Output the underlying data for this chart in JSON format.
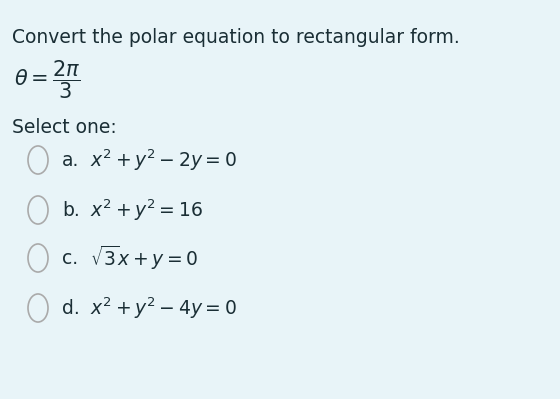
{
  "background_color": "#e8f4f8",
  "title": "Convert the polar equation to rectangular form.",
  "title_fontsize": 13.5,
  "equation": "$\\theta = \\dfrac{2\\pi}{3}$",
  "eq_fontsize": 15,
  "select_text": "Select one:",
  "select_fontsize": 13.5,
  "options": [
    {
      "label": "a.",
      "formula": "$x^2 + y^2 - 2y = 0$"
    },
    {
      "label": "b.",
      "formula": "$x^2 + y^2 = 16$"
    },
    {
      "label": "c.",
      "formula": "$\\sqrt{3}x + y = 0$"
    },
    {
      "label": "d.",
      "formula": "$x^2 + y^2 - 4y = 0$"
    }
  ],
  "circle_color": "#aaaaaa",
  "circle_linewidth": 1.2,
  "font_color": "#1a2e35",
  "option_fontsize": 13.5,
  "label_fontsize": 13.5
}
